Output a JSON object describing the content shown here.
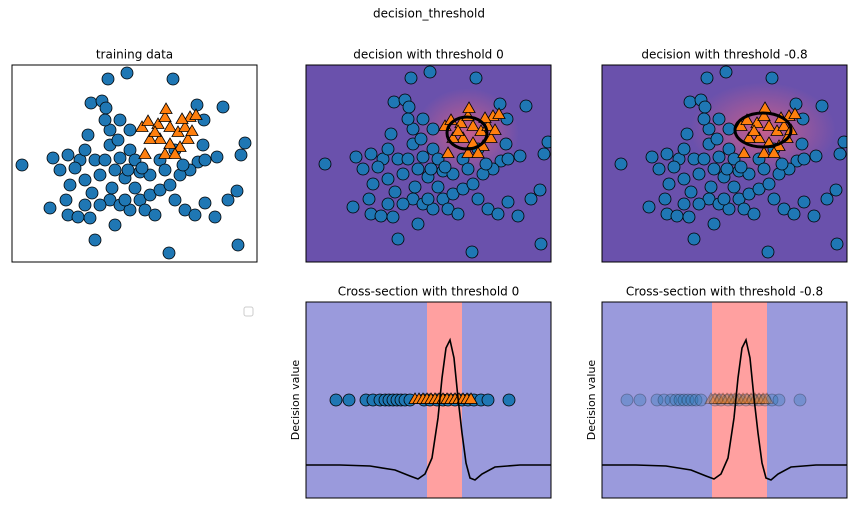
{
  "title": "decision_threshold",
  "chart_data": [
    {
      "type": "scatter",
      "title": "training data",
      "xlim": [
        0,
        245
      ],
      "ylim": [
        0,
        197
      ],
      "series": [
        {
          "marker": "circle",
          "color": "#1f77b4",
          "x": [
            115,
            96,
            161,
            79,
            90,
            94,
            211,
            10,
            41,
            56,
            68,
            83,
            98,
            106,
            118,
            123,
            128,
            113,
            103,
            88,
            73,
            58,
            54,
            38,
            56,
            66,
            78,
            83,
            98,
            108,
            118,
            128,
            138,
            148,
            158,
            163,
            173,
            183,
            193,
            203,
            216,
            225,
            229,
            233,
            205,
            191,
            186,
            178,
            168,
            148,
            138,
            123,
            100,
            80,
            108,
            98,
            118,
            93,
            76,
            73,
            157,
            226,
            185,
            192,
            171,
            153,
            133,
            143,
            88,
            73,
            103,
            113,
            130,
            116,
            93,
            108,
            163,
            193,
            63,
            48
          ],
          "y": [
            189,
            183,
            183,
            159,
            161,
            154,
            155,
            97,
            104,
            107,
            102,
            102,
            117,
            122,
            112,
            102,
            90,
            84,
            92,
            87,
            82,
            77,
            62,
            54,
            47,
            45,
            44,
            22,
            62,
            57,
            52,
            62,
            67,
            72,
            77,
            62,
            52,
            47,
            59,
            45,
            62,
            71,
            107,
            119,
            105,
            117,
            100,
            92,
            87,
            102,
            87,
            74,
            74,
            69,
            142,
            132,
            132,
            142,
            127,
            112,
            9,
            17,
            157,
            142,
            97,
            92,
            52,
            47,
            57,
            57,
            37,
            62,
            94,
            92,
            102,
            104,
            112,
            102,
            94,
            92
          ]
        },
        {
          "marker": "triangle",
          "color": "#ff7f0e",
          "x": [
            130,
            136,
            146,
            153,
            158,
            166,
            173,
            178,
            184,
            148,
            158,
            168,
            176,
            138,
            133,
            153,
            163,
            143,
            170,
            154,
            180
          ],
          "y": [
            134,
            140,
            137,
            144,
            134,
            129,
            134,
            144,
            146,
            122,
            117,
            114,
            122,
            122,
            107,
            107,
            107,
            129,
            142,
            152,
            130
          ]
        }
      ]
    },
    {
      "type": "decision",
      "title": "decision with threshold 0",
      "xlim": [
        -9,
        236
      ],
      "ylim": [
        -1,
        196
      ],
      "background": "#6a51ac",
      "glow_color": "#d0608a",
      "boundary": {
        "cx": 152,
        "cy": 128,
        "rx": 20,
        "ry": 16
      },
      "series": [
        {
          "marker": "circle",
          "color": "#1f77b4",
          "x": [
            115,
            96,
            161,
            79,
            90,
            94,
            211,
            10,
            41,
            56,
            68,
            83,
            98,
            106,
            118,
            123,
            128,
            113,
            103,
            88,
            73,
            58,
            54,
            38,
            56,
            66,
            78,
            83,
            98,
            108,
            118,
            128,
            138,
            148,
            158,
            163,
            173,
            183,
            193,
            203,
            216,
            225,
            229,
            233,
            205,
            191,
            186,
            178,
            168,
            148,
            138,
            123,
            100,
            80,
            108,
            98,
            118,
            93,
            76,
            73,
            157,
            226,
            185,
            192,
            171,
            153,
            133,
            143,
            88,
            73,
            103,
            113,
            130,
            116,
            93,
            108,
            163,
            193,
            63,
            48
          ],
          "y": [
            189,
            183,
            183,
            159,
            161,
            154,
            155,
            97,
            104,
            107,
            102,
            102,
            117,
            122,
            112,
            102,
            90,
            84,
            92,
            87,
            82,
            77,
            62,
            54,
            47,
            45,
            44,
            22,
            62,
            57,
            52,
            62,
            67,
            72,
            77,
            62,
            52,
            47,
            59,
            45,
            62,
            71,
            107,
            119,
            105,
            117,
            100,
            92,
            87,
            102,
            87,
            74,
            74,
            69,
            142,
            132,
            132,
            142,
            127,
            112,
            9,
            17,
            157,
            142,
            97,
            92,
            52,
            47,
            57,
            57,
            37,
            62,
            94,
            92,
            102,
            104,
            112,
            102,
            94,
            92
          ]
        },
        {
          "marker": "triangle",
          "color": "#ff7f0e",
          "x": [
            130,
            136,
            146,
            153,
            158,
            166,
            173,
            178,
            184,
            148,
            158,
            168,
            176,
            138,
            133,
            153,
            163,
            143,
            170,
            154,
            180
          ],
          "y": [
            134,
            140,
            137,
            144,
            134,
            129,
            134,
            144,
            146,
            122,
            117,
            114,
            122,
            122,
            107,
            107,
            107,
            129,
            142,
            152,
            130
          ]
        }
      ]
    },
    {
      "type": "decision",
      "title": "decision with threshold -0.8",
      "xlim": [
        -9,
        236
      ],
      "ylim": [
        -1,
        196
      ],
      "background": "#6a51ac",
      "glow_color": "#d0608a",
      "boundary": {
        "cx": 152,
        "cy": 131,
        "rx": 28,
        "ry": 17
      },
      "series": [
        {
          "marker": "circle",
          "color": "#1f77b4",
          "x": [
            115,
            96,
            161,
            79,
            90,
            94,
            211,
            10,
            41,
            56,
            68,
            83,
            98,
            106,
            118,
            123,
            128,
            113,
            103,
            88,
            73,
            58,
            54,
            38,
            56,
            66,
            78,
            83,
            98,
            108,
            118,
            128,
            138,
            148,
            158,
            163,
            173,
            183,
            193,
            203,
            216,
            225,
            229,
            233,
            205,
            191,
            186,
            178,
            168,
            148,
            138,
            123,
            100,
            80,
            108,
            98,
            118,
            93,
            76,
            73,
            157,
            226,
            185,
            192,
            171,
            153,
            133,
            143,
            88,
            73,
            103,
            113,
            130,
            116,
            93,
            108,
            163,
            193,
            63,
            48
          ],
          "y": [
            189,
            183,
            183,
            159,
            161,
            154,
            155,
            97,
            104,
            107,
            102,
            102,
            117,
            122,
            112,
            102,
            90,
            84,
            92,
            87,
            82,
            77,
            62,
            54,
            47,
            45,
            44,
            22,
            62,
            57,
            52,
            62,
            67,
            72,
            77,
            62,
            52,
            47,
            59,
            45,
            62,
            71,
            107,
            119,
            105,
            117,
            100,
            92,
            87,
            102,
            87,
            74,
            74,
            69,
            142,
            132,
            132,
            142,
            127,
            112,
            9,
            17,
            157,
            142,
            97,
            92,
            52,
            47,
            57,
            57,
            37,
            62,
            94,
            92,
            102,
            104,
            112,
            102,
            94,
            92
          ]
        },
        {
          "marker": "triangle",
          "color": "#ff7f0e",
          "x": [
            130,
            136,
            146,
            153,
            158,
            166,
            173,
            178,
            184,
            148,
            158,
            168,
            176,
            138,
            133,
            153,
            163,
            143,
            170,
            154,
            180
          ],
          "y": [
            134,
            140,
            137,
            144,
            134,
            129,
            134,
            144,
            146,
            122,
            117,
            114,
            122,
            122,
            107,
            107,
            107,
            129,
            142,
            152,
            130
          ]
        }
      ]
    },
    {
      "type": "cross-section",
      "title": "Cross-section with threshold 0",
      "ylabel": "Decision value",
      "xlim": [
        -9,
        236
      ],
      "ylim": [
        0,
        196
      ],
      "background": "#9a9adc",
      "band_color": "#ffa0a0",
      "band": [
        112,
        147
      ],
      "alpha": 1,
      "series": [
        {
          "marker": "circle",
          "color": "#1f77b4",
          "level": 98,
          "x": [
            21,
            34,
            51,
            58,
            65,
            70,
            74,
            78,
            82,
            86,
            90,
            95,
            109,
            115,
            122,
            128,
            133,
            140,
            147,
            153,
            159,
            166,
            173,
            194
          ]
        },
        {
          "marker": "triangle",
          "color": "#ff7f0e",
          "level": 98,
          "x": [
            100,
            104,
            108,
            112,
            116,
            120,
            124,
            128,
            132,
            136,
            140,
            144,
            148,
            152,
            156
          ]
        }
      ],
      "curve": {
        "color": "#000000",
        "x": [
          -9,
          25,
          55,
          80,
          95,
          103,
          110,
          117,
          123,
          127,
          131,
          135,
          139,
          143,
          147,
          151,
          155,
          160,
          167,
          180,
          205,
          236
        ],
        "y": [
          33,
          33,
          32,
          28,
          22,
          19,
          24,
          40,
          80,
          120,
          150,
          158,
          140,
          100,
          65,
          35,
          20,
          18,
          24,
          31,
          33,
          33
        ]
      }
    },
    {
      "type": "cross-section",
      "title": "Cross-section with threshold -0.8",
      "ylabel": "Decision value",
      "xlim": [
        -9,
        236
      ],
      "ylim": [
        0,
        196
      ],
      "background": "#9a9adc",
      "band_color": "#ffa0a0",
      "band": [
        101,
        156
      ],
      "alpha": 0.3,
      "series": [
        {
          "marker": "circle",
          "color": "#1f77b4",
          "level": 98,
          "x": [
            16,
            29,
            46,
            53,
            60,
            65,
            69,
            73,
            77,
            81,
            85,
            90,
            104,
            110,
            117,
            123,
            128,
            135,
            142,
            148,
            154,
            161,
            168,
            189
          ]
        },
        {
          "marker": "triangle",
          "color": "#ff7f0e",
          "level": 98,
          "x": [
            100,
            104,
            108,
            112,
            116,
            120,
            124,
            128,
            132,
            136,
            140,
            144,
            148,
            152,
            156
          ]
        }
      ],
      "curve": {
        "color": "#000000",
        "x": [
          -9,
          25,
          55,
          80,
          95,
          103,
          110,
          117,
          123,
          127,
          131,
          135,
          139,
          143,
          147,
          151,
          155,
          160,
          167,
          180,
          205,
          236
        ],
        "y": [
          33,
          33,
          32,
          28,
          22,
          19,
          24,
          40,
          80,
          120,
          150,
          158,
          140,
          100,
          65,
          35,
          20,
          18,
          24,
          31,
          33,
          33
        ]
      }
    }
  ]
}
